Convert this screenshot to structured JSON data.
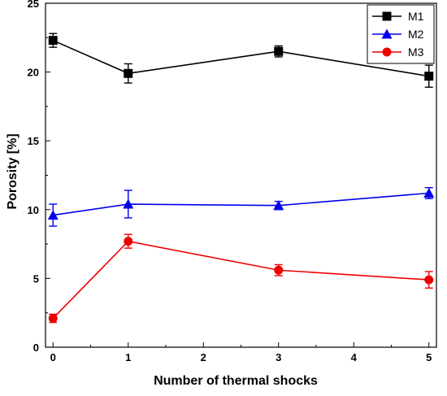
{
  "chart_data": {
    "type": "line",
    "title": "",
    "xlabel": "Number of thermal shocks",
    "ylabel": "Porosity [%]",
    "xlim": [
      -0.1,
      5.1
    ],
    "ylim": [
      0,
      25
    ],
    "xticks": [
      0,
      1,
      2,
      3,
      4,
      5
    ],
    "yticks": [
      0,
      5,
      10,
      15,
      20,
      25
    ],
    "grid": false,
    "legend_position": "top-right",
    "series": [
      {
        "name": "M1",
        "color": "#000000",
        "marker": "square",
        "x": [
          0,
          1,
          3,
          5
        ],
        "y": [
          22.3,
          19.9,
          21.5,
          19.7
        ],
        "error": [
          0.5,
          0.7,
          0.4,
          0.8
        ]
      },
      {
        "name": "M2",
        "color": "#0000ee",
        "marker": "triangle",
        "x": [
          0,
          1,
          3,
          5
        ],
        "y": [
          9.6,
          10.4,
          10.3,
          11.2
        ],
        "error": [
          0.8,
          1.0,
          0.3,
          0.4
        ]
      },
      {
        "name": "M3",
        "color": "#ee0000",
        "marker": "circle",
        "x": [
          0,
          1,
          3,
          5
        ],
        "y": [
          2.1,
          7.7,
          5.6,
          4.9
        ],
        "error": [
          0.3,
          0.5,
          0.4,
          0.6
        ]
      }
    ]
  }
}
